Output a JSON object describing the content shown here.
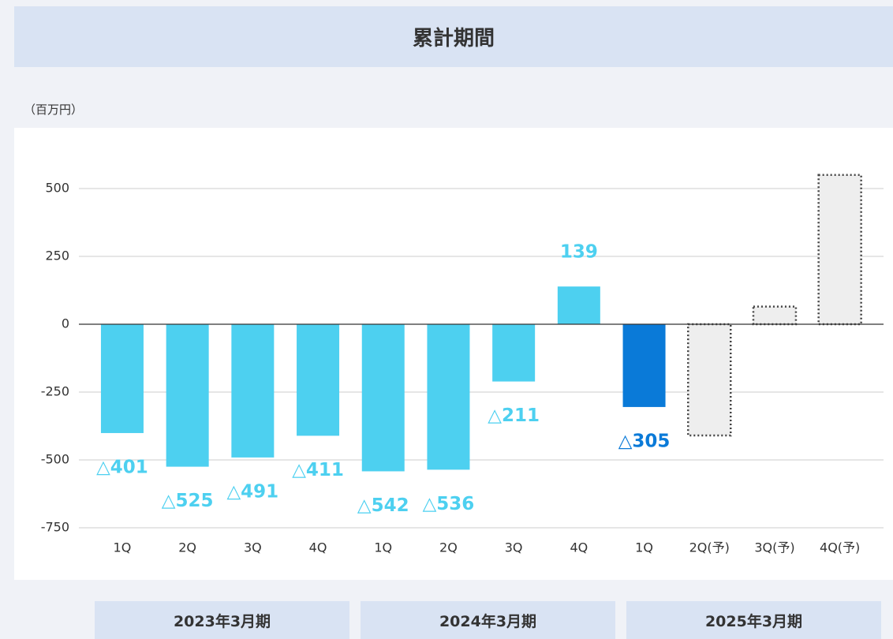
{
  "chart_data": {
    "type": "bar",
    "title": "累計期間",
    "unit_label": "（百万円）",
    "categories": [
      "1Q",
      "2Q",
      "3Q",
      "4Q",
      "1Q",
      "2Q",
      "3Q",
      "4Q",
      "1Q",
      "2Q(予)",
      "3Q(予)",
      "4Q(予)"
    ],
    "values": [
      -401,
      -525,
      -491,
      -411,
      -542,
      -536,
      -211,
      139,
      -305,
      -410,
      65,
      550
    ],
    "value_labels": [
      "△401",
      "△525",
      "△491",
      "△411",
      "△542",
      "△536",
      "△211",
      "139",
      "△305",
      null,
      null,
      null
    ],
    "colors": [
      "#4dd0f0",
      "#4dd0f0",
      "#4dd0f0",
      "#4dd0f0",
      "#4dd0f0",
      "#4dd0f0",
      "#4dd0f0",
      "#4dd0f0",
      "#0a7ad8",
      "#eeeeee",
      "#eeeeee",
      "#eeeeee"
    ],
    "dotted": [
      false,
      false,
      false,
      false,
      false,
      false,
      false,
      false,
      false,
      true,
      true,
      true
    ],
    "period_labels": [
      "2023年3月期",
      "2024年3月期",
      "2025年3月期"
    ],
    "ylim": [
      -750,
      650
    ],
    "yticks": [
      -750,
      -500,
      -250,
      0,
      250,
      500
    ],
    "grid": true
  }
}
